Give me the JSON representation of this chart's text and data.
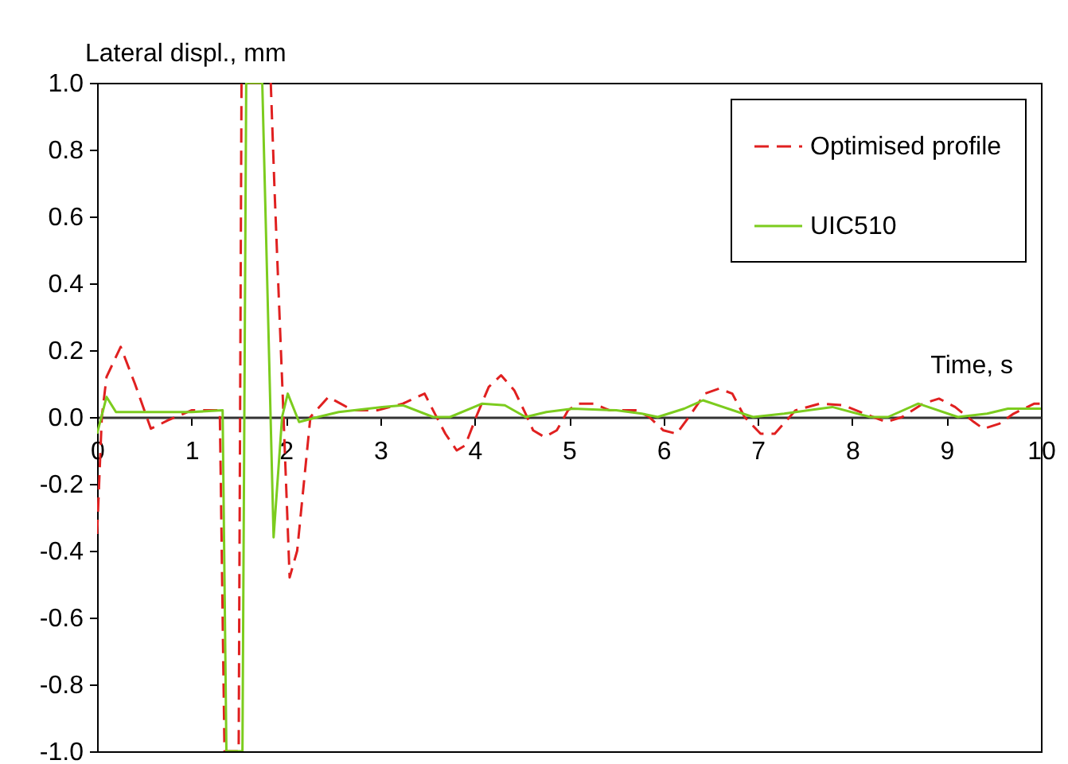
{
  "chart_data": {
    "type": "line",
    "xlabel": "Time, s",
    "ylabel": "Lateral displ., mm",
    "xlim": [
      0,
      10
    ],
    "ylim": [
      -1,
      1
    ],
    "xticks": [
      0,
      1,
      2,
      3,
      4,
      5,
      6,
      7,
      8,
      9,
      10
    ],
    "yticks": [
      {
        "value": -1,
        "label": "-1.0"
      },
      {
        "value": -0.8,
        "label": "-0.8"
      },
      {
        "value": -0.6,
        "label": "-0.6"
      },
      {
        "value": -0.4,
        "label": "-0.4"
      },
      {
        "value": -0.2,
        "label": "-0.2"
      },
      {
        "value": 0,
        "label": "0.0"
      },
      {
        "value": 0.2,
        "label": "0.2"
      },
      {
        "value": 0.4,
        "label": "0.4"
      },
      {
        "value": 0.6,
        "label": "0.6"
      },
      {
        "value": 0.8,
        "label": "0.8"
      },
      {
        "value": 1,
        "label": "1.0"
      }
    ],
    "grid": false,
    "legend": "top right",
    "marker": "none",
    "series": [
      {
        "name": "Optimised profile",
        "color": "#e02020",
        "line_style": "dashed",
        "x": [
          0,
          0.05,
          0.1,
          0.25,
          0.4,
          0.57,
          0.75,
          1.0,
          1.3,
          1.35,
          1.5,
          1.53,
          1.84,
          1.88,
          1.97,
          2.04,
          2.12,
          2.26,
          2.45,
          2.71,
          2.97,
          3.24,
          3.47,
          3.56,
          3.69,
          3.81,
          3.9,
          4.03,
          4.15,
          4.28,
          4.42,
          4.54,
          4.62,
          4.74,
          4.87,
          4.99,
          5.09,
          5.26,
          5.43,
          5.72,
          5.85,
          6.0,
          6.14,
          6.27,
          6.44,
          6.59,
          6.73,
          6.86,
          7.03,
          7.18,
          7.4,
          7.66,
          7.91,
          8.13,
          8.36,
          8.53,
          8.75,
          8.92,
          9.09,
          9.29,
          9.39,
          9.56,
          9.71,
          9.93,
          10
        ],
        "values": [
          -0.35,
          0,
          0.12,
          0.21,
          0.1,
          -0.035,
          -0.01,
          0.02,
          0.02,
          -1,
          -1,
          1,
          1,
          0.68,
          0.04,
          -0.48,
          -0.4,
          0,
          0.06,
          0.02,
          0.02,
          0.04,
          0.07,
          0.02,
          -0.05,
          -0.1,
          -0.085,
          0.01,
          0.09,
          0.125,
          0.08,
          0.01,
          -0.04,
          -0.06,
          -0.04,
          0.02,
          0.04,
          0.04,
          0.02,
          0.02,
          0,
          -0.04,
          -0.05,
          0,
          0.07,
          0.085,
          0.07,
          0,
          -0.05,
          -0.05,
          0.02,
          0.04,
          0.035,
          0.01,
          -0.015,
          0,
          0.04,
          0.055,
          0.03,
          -0.015,
          -0.035,
          -0.02,
          0.01,
          0.04,
          0.04
        ]
      },
      {
        "name": "UIC510",
        "color": "#7ccc1e",
        "line_style": "solid",
        "x": [
          0,
          0.1,
          0.2,
          0.5,
          1.0,
          1.33,
          1.37,
          1.54,
          1.58,
          1.75,
          1.87,
          1.96,
          2.02,
          2.14,
          2.34,
          2.56,
          3.02,
          3.24,
          3.56,
          3.74,
          4.08,
          4.32,
          4.54,
          4.76,
          5.04,
          5.5,
          5.77,
          5.94,
          6.22,
          6.42,
          6.95,
          7.28,
          7.79,
          8.19,
          8.38,
          8.7,
          9.12,
          9.43,
          9.65,
          10
        ],
        "values": [
          -0.05,
          0.06,
          0.015,
          0.015,
          0.015,
          0.02,
          -1,
          -1,
          1,
          1,
          -0.36,
          0,
          0.07,
          -0.015,
          0,
          0.015,
          0.03,
          0.035,
          0,
          0,
          0.04,
          0.035,
          0,
          0.015,
          0.025,
          0.02,
          0.01,
          0,
          0.025,
          0.05,
          0,
          0.01,
          0.03,
          0,
          0,
          0.04,
          0,
          0.01,
          0.025,
          0.025
        ]
      }
    ]
  }
}
